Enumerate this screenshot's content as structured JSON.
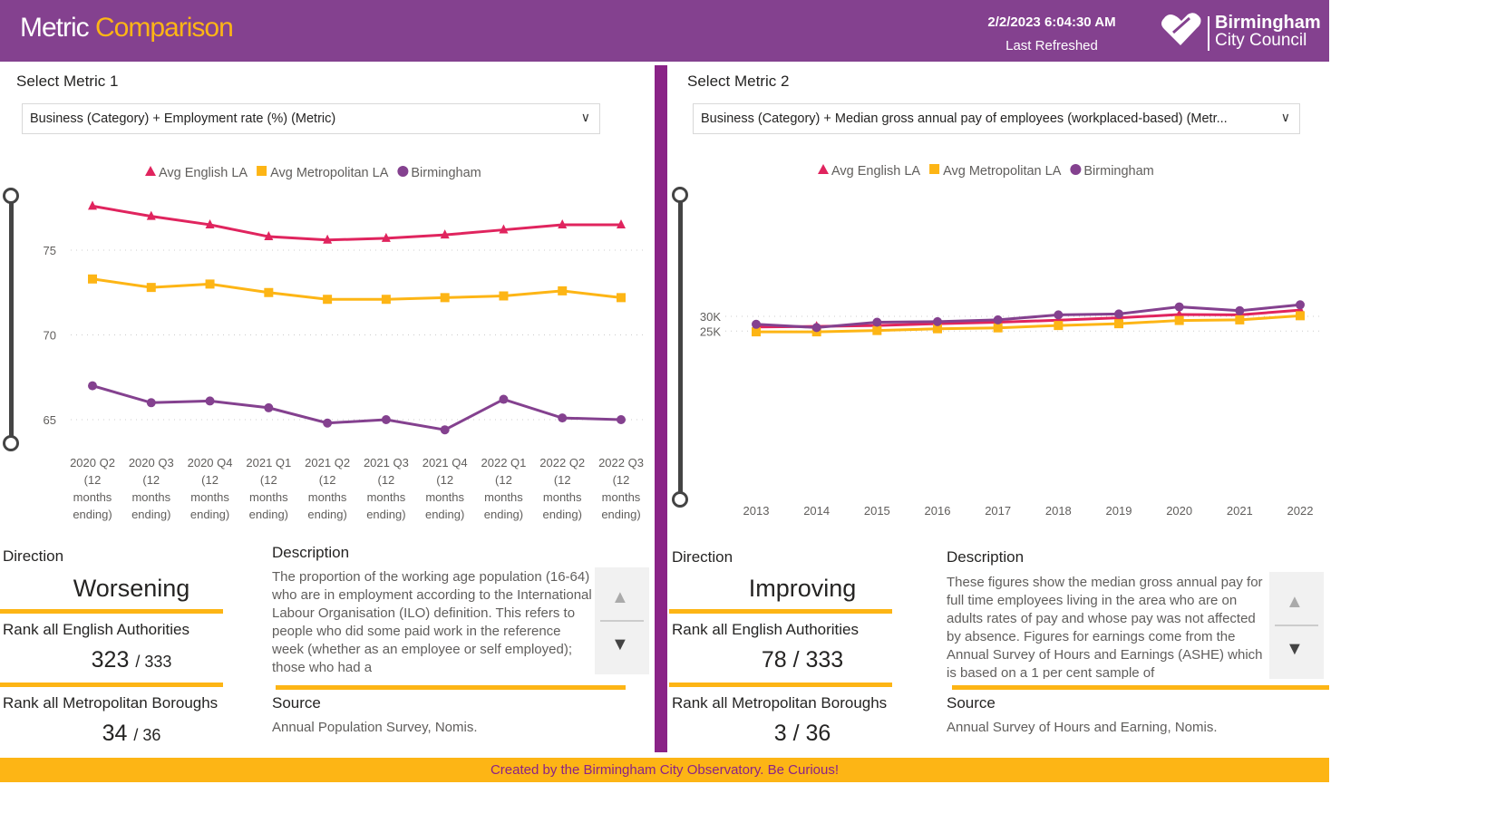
{
  "header": {
    "title_part1": "Metric",
    "title_part2": "Comparison",
    "refresh_time": "2/2/2023 6:04:30 AM",
    "refresh_label": "Last Refreshed",
    "logo_line1": "Birmingham",
    "logo_line2": "City Council",
    "color": "#84418F"
  },
  "left": {
    "select_label": "Select Metric 1",
    "dropdown_value": "Business (Category) + Employment rate (%) (Metric)",
    "direction_label": "Direction",
    "direction_value": "Worsening",
    "rank_english_label": "Rank all English Authorities",
    "rank_english_value": "323",
    "rank_english_total": "/ 333",
    "rank_metro_label": "Rank all Metropolitan Boroughs",
    "rank_metro_value": "34",
    "rank_metro_total": "/ 36",
    "description_label": "Description",
    "description": "The proportion of the working age population (16-64) who are in employment according to the International Labour Organisation (ILO) definition. This refers to people who did some paid work in the reference week (whether as an employee or self employed); those who had a",
    "source_label": "Source",
    "source": "Annual Population Survey, Nomis."
  },
  "right": {
    "select_label": "Select Metric 2",
    "dropdown_value": "Business (Category) + Median gross annual pay of employees (workplaced-based) (Metr...",
    "direction_label": "Direction",
    "direction_value": "Improving",
    "rank_english_label": "Rank all English Authorities",
    "rank_english_value": "78",
    "rank_english_total": "/ 333",
    "rank_metro_label": "Rank all Metropolitan Boroughs",
    "rank_metro_value": "3",
    "rank_metro_total": "/ 36",
    "description_label": "Description",
    "description": "These figures show the median gross annual pay for full time employees living in the area who are on adults rates of pay and whose pay was not affected by absence. Figures for earnings come from the Annual Survey of Hours and Earnings (ASHE) which is based on a 1 per cent sample of",
    "source_label": "Source",
    "source": "Annual Survey of Hours and Earning, Nomis."
  },
  "footer": {
    "text": "Created by the Birmingham City Observatory. Be Curious!"
  },
  "chart_data": [
    {
      "type": "line",
      "legend_position": "top-center",
      "grid": true,
      "ylim": [
        63.5,
        78.5
      ],
      "yticks": [
        "75",
        "70",
        "65"
      ],
      "ytick_values": [
        75,
        70,
        65
      ],
      "categories": [
        "2020 Q2 (12 months ending)",
        "2020 Q3 (12 months ending)",
        "2020 Q4 (12 months ending)",
        "2021 Q1 (12 months ending)",
        "2021 Q2 (12 months ending)",
        "2021 Q3 (12 months ending)",
        "2021 Q4 (12 months ending)",
        "2022 Q1 (12 months ending)",
        "2022 Q2 (12 months ending)",
        "2022 Q3 (12 months ending)"
      ],
      "series": [
        {
          "name": "Avg English LA",
          "color": "#E0245E",
          "marker": "triangle",
          "values": [
            77.6,
            77.0,
            76.5,
            75.8,
            75.6,
            75.7,
            75.9,
            76.2,
            76.5,
            76.5
          ]
        },
        {
          "name": "Avg Metropolitan LA",
          "color": "#FDB515",
          "marker": "square",
          "values": [
            73.3,
            72.8,
            73.0,
            72.5,
            72.1,
            72.1,
            72.2,
            72.3,
            72.6,
            72.2
          ]
        },
        {
          "name": "Birmingham",
          "color": "#84418F",
          "marker": "circle",
          "values": [
            67.0,
            66.0,
            66.1,
            65.7,
            64.8,
            65.0,
            64.4,
            66.2,
            65.1,
            65.0
          ]
        }
      ]
    },
    {
      "type": "line",
      "legend_position": "top-center",
      "grid": true,
      "ylim": [
        24000,
        35000
      ],
      "yticks": [
        "30K",
        "25K"
      ],
      "ytick_values": [
        30000,
        25000
      ],
      "categories": [
        "2013",
        "2014",
        "2015",
        "2016",
        "2017",
        "2018",
        "2019",
        "2020",
        "2021",
        "2022"
      ],
      "series": [
        {
          "name": "Avg English LA",
          "color": "#E0245E",
          "marker": "triangle",
          "values": [
            26400,
            26600,
            26900,
            27500,
            28000,
            28700,
            29500,
            30600,
            30500,
            32100
          ]
        },
        {
          "name": "Avg Metropolitan LA",
          "color": "#FDB515",
          "marker": "square",
          "values": [
            24750,
            24750,
            25200,
            25800,
            26100,
            26900,
            27500,
            28600,
            28800,
            30200
          ]
        },
        {
          "name": "Birmingham",
          "color": "#84418F",
          "marker": "circle",
          "values": [
            27300,
            26200,
            28000,
            28200,
            28800,
            30500,
            30800,
            33200,
            31900,
            33900
          ]
        }
      ]
    }
  ]
}
